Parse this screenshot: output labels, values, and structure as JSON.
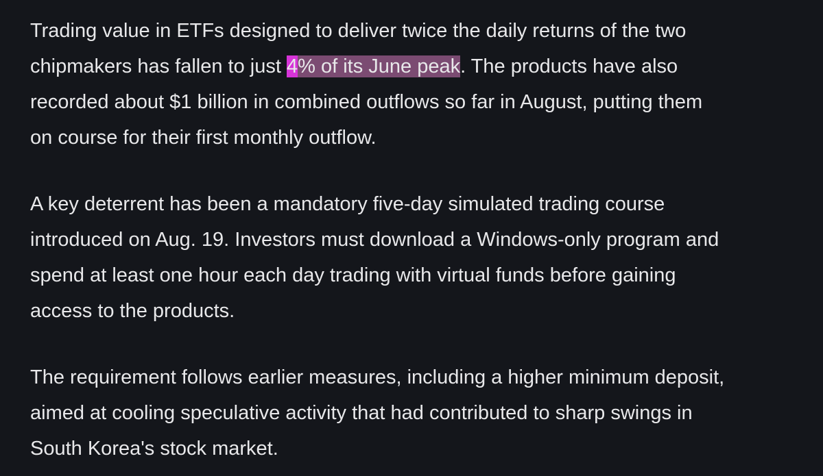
{
  "paragraphs": [
    {
      "lines": [
        "Trading value in ETFs designed to deliver twice the daily returns of the two",
        {
          "before": "chipmakers has fallen to just ",
          "highlight_first": "4",
          "highlight_rest": "% of its June peak",
          "after": ". The products have also"
        },
        "recorded about $1 billion in combined outflows so far in August, putting them",
        "on course for their first monthly outflow."
      ]
    },
    {
      "lines": [
        "A key deterrent has been a mandatory five-day simulated trading course",
        "introduced on Aug. 19. Investors must download a Windows-only program and",
        "spend at least one hour each day trading with virtual funds before gaining",
        "access to the products."
      ]
    },
    {
      "lines": [
        "The requirement follows earlier measures, including a higher minimum deposit,",
        "aimed at cooling speculative activity that had contributed to sharp swings in",
        "South Korea's stock market."
      ]
    }
  ]
}
